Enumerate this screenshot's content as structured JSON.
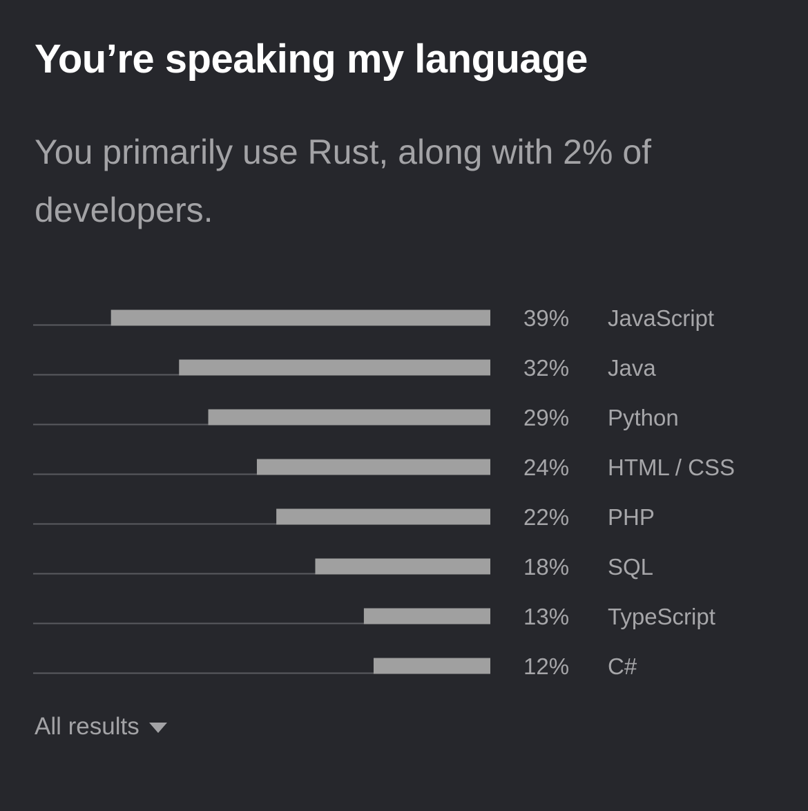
{
  "card": {
    "title": "You’re speaking my language",
    "subtitle": "You primarily use Rust, along with 2% of developers.",
    "all_results_label": "All results",
    "all_results_icon": "caret-down-icon"
  },
  "colors": {
    "background": "#26272c",
    "bar": "#a0a0a0",
    "track": "#5a5b60",
    "title": "#ffffff",
    "muted_text": "#a3a3a6"
  },
  "chart_data": {
    "type": "bar",
    "orientation": "horizontal",
    "bar_alignment": "right",
    "categories": [
      "JavaScript",
      "Java",
      "Python",
      "HTML / CSS",
      "PHP",
      "SQL",
      "TypeScript",
      "C#"
    ],
    "values": [
      39,
      32,
      29,
      24,
      22,
      18,
      13,
      12
    ],
    "value_labels": [
      "39%",
      "32%",
      "29%",
      "24%",
      "22%",
      "18%",
      "13%",
      "12%"
    ],
    "unit": "%",
    "xlim": [
      0,
      47
    ],
    "grid": false,
    "legend": "none",
    "title": "",
    "xlabel": "",
    "ylabel": ""
  }
}
